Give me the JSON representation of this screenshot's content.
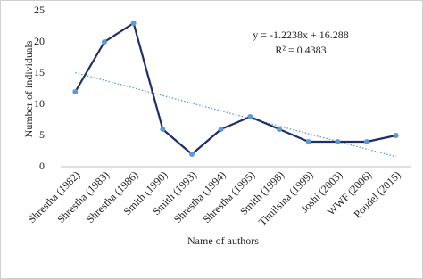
{
  "chart_data": {
    "type": "line",
    "x_label": "Name of authors",
    "y_label": "Number of individuals",
    "categories": [
      "Shrestha (1982)",
      "Shrestha (1983)",
      "Shrestha (1986)",
      "Smith (1990)",
      "Smith (1993)",
      "Shrestha (1994)",
      "Shrestha (1995)",
      "Smith (1998)",
      "Timilsina (1999)",
      "Joshi (2003)",
      "WWF (2006)",
      "Poudel (2015)"
    ],
    "series": [
      {
        "color": "#1f2d6b",
        "marker_color": "#5b9bd5",
        "values": [
          12,
          20,
          23,
          6,
          2,
          6,
          8,
          6,
          4,
          4,
          4,
          5
        ]
      }
    ],
    "trendline": {
      "slope": -1.2238,
      "intercept": 16.288,
      "color": "#5b9bd5",
      "equation": "y = -1.2238x + 16.288",
      "r_squared": "R² = 0.4383"
    },
    "ylim": [
      0,
      25
    ],
    "yticks": [
      0,
      5,
      10,
      15,
      20,
      25
    ]
  }
}
